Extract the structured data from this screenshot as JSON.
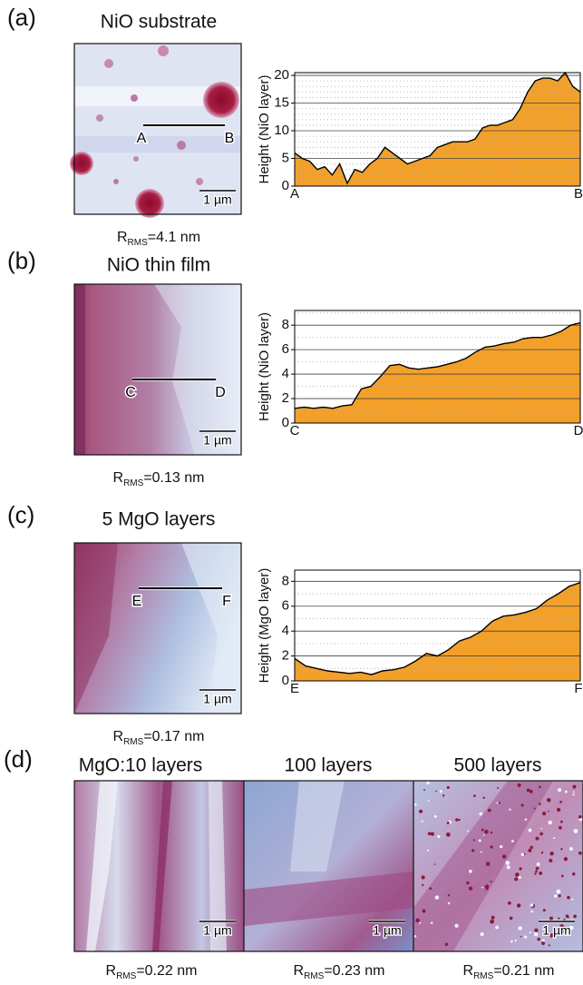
{
  "panels": [
    {
      "label": "(a)",
      "title": "NiO substrate",
      "scale_bar": "1 µm",
      "line_start": "A",
      "line_end": "B",
      "rms": {
        "symbol": "R",
        "subscript": "RMS",
        "value": "=4.1 nm"
      }
    },
    {
      "label": "(b)",
      "title": "NiO thin film",
      "scale_bar": "1 µm",
      "line_start": "C",
      "line_end": "D",
      "rms": {
        "symbol": "R",
        "subscript": "RMS",
        "value": "=0.13 nm"
      }
    },
    {
      "label": "(c)",
      "title": "5 MgO layers",
      "scale_bar": "1 µm",
      "line_start": "E",
      "line_end": "F",
      "rms": {
        "symbol": "R",
        "subscript": "RMS",
        "value": "=0.17 nm"
      }
    }
  ],
  "panel_d": {
    "label": "(d)",
    "images": [
      {
        "title": "MgO:10 layers",
        "scale_bar": "1 µm",
        "rms": {
          "symbol": "R",
          "subscript": "RMS",
          "value": "=0.22 nm"
        }
      },
      {
        "title": "100 layers",
        "scale_bar": "1 µm",
        "rms": {
          "symbol": "R",
          "subscript": "RMS",
          "value": "=0.23 nm"
        }
      },
      {
        "title": "500 layers",
        "scale_bar": "1 µm",
        "rms": {
          "symbol": "R",
          "subscript": "RMS",
          "value": "=0.21 nm"
        }
      }
    ]
  },
  "chart_data": [
    {
      "type": "area",
      "y_label": "Height (NiO layer)",
      "x_start_label": "A",
      "x_end_label": "B",
      "color": "#f2a02a",
      "grid": true,
      "minor_grid_step": 1,
      "ylim": [
        0,
        20.5
      ],
      "yticks": [
        0,
        5,
        10,
        15,
        20
      ],
      "values": [
        6,
        5,
        4.5,
        3,
        3.5,
        2,
        4,
        0.5,
        3,
        2.5,
        4,
        5,
        7,
        6,
        5,
        4,
        4.5,
        5,
        5.5,
        7,
        7.5,
        8,
        8,
        8,
        8.5,
        10.5,
        11,
        11,
        11.5,
        12,
        14,
        17,
        19,
        19.5,
        19.5,
        19,
        20.5,
        18,
        17
      ]
    },
    {
      "type": "area",
      "y_label": "Height (NiO layer)",
      "x_start_label": "C",
      "x_end_label": "D",
      "color": "#f2a02a",
      "grid": true,
      "minor_grid_step": 1,
      "ylim": [
        0,
        9.2
      ],
      "yticks": [
        0,
        2,
        4,
        6,
        8
      ],
      "values": [
        1.2,
        1.3,
        1.2,
        1.3,
        1.2,
        1.4,
        1.5,
        2.8,
        3.0,
        3.8,
        4.7,
        4.8,
        4.5,
        4.4,
        4.5,
        4.6,
        4.8,
        5.0,
        5.3,
        5.8,
        6.2,
        6.3,
        6.5,
        6.6,
        6.9,
        7.0,
        7.0,
        7.2,
        7.5,
        8.0,
        8.2
      ]
    },
    {
      "type": "area",
      "y_label": "Height (MgO layer)",
      "x_start_label": "E",
      "x_end_label": "F",
      "color": "#f2a02a",
      "grid": true,
      "minor_grid_step": 1,
      "ylim": [
        0,
        8.9
      ],
      "yticks": [
        0,
        2,
        4,
        6,
        8
      ],
      "values": [
        1.8,
        1.2,
        1.0,
        0.8,
        0.7,
        0.6,
        0.7,
        0.5,
        0.8,
        0.9,
        1.1,
        1.6,
        2.2,
        2.0,
        2.5,
        3.2,
        3.5,
        4.0,
        4.8,
        5.2,
        5.3,
        5.5,
        5.8,
        6.5,
        7.0,
        7.6,
        7.9
      ]
    }
  ]
}
